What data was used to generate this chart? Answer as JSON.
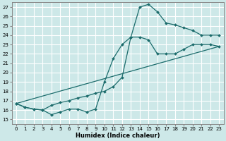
{
  "xlabel": "Humidex (Indice chaleur)",
  "bg_color": "#cde8e8",
  "grid_color": "#ffffff",
  "line_color": "#1a6b6b",
  "xlim": [
    -0.5,
    23.5
  ],
  "ylim": [
    14.5,
    27.5
  ],
  "yticks": [
    15,
    16,
    17,
    18,
    19,
    20,
    21,
    22,
    23,
    24,
    25,
    26,
    27
  ],
  "xticks": [
    0,
    1,
    2,
    3,
    4,
    5,
    6,
    7,
    8,
    9,
    10,
    11,
    12,
    13,
    14,
    15,
    16,
    17,
    18,
    19,
    20,
    21,
    22,
    23
  ],
  "series": [
    {
      "x": [
        0,
        1,
        2,
        3,
        4,
        5,
        6,
        7,
        8,
        9,
        10,
        11,
        12,
        13,
        14,
        15,
        16,
        17,
        18,
        19,
        20,
        21,
        22,
        23
      ],
      "y": [
        16.7,
        16.3,
        16.1,
        16.0,
        15.5,
        15.8,
        16.1,
        16.1,
        15.8,
        16.1,
        19.0,
        21.5,
        23.0,
        23.8,
        23.8,
        23.5,
        22.0,
        22.0,
        22.0,
        22.5,
        23.0,
        23.0,
        23.0,
        22.8
      ]
    },
    {
      "x": [
        0,
        1,
        2,
        3,
        4,
        5,
        6,
        7,
        8,
        9,
        10,
        11,
        12,
        13,
        14,
        15,
        16,
        17,
        18,
        19,
        20,
        21,
        22,
        23
      ],
      "y": [
        16.7,
        16.3,
        16.1,
        16.0,
        16.5,
        16.8,
        17.0,
        17.3,
        17.5,
        17.8,
        18.0,
        18.5,
        19.5,
        23.8,
        27.0,
        27.3,
        26.5,
        25.3,
        25.1,
        24.8,
        24.5,
        24.0,
        24.0,
        24.0
      ]
    },
    {
      "x": [
        0,
        23
      ],
      "y": [
        16.7,
        22.8
      ]
    }
  ]
}
